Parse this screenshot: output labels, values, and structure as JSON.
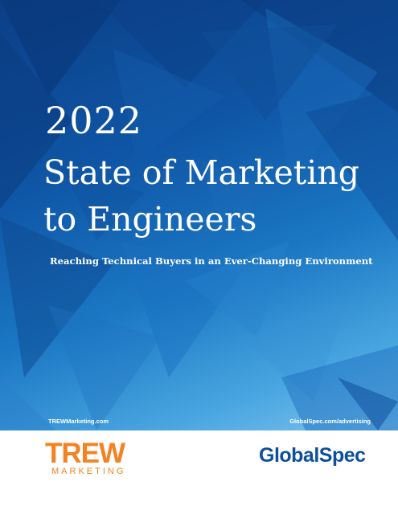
{
  "cover": {
    "year": "2022",
    "title_line1": "State of Marketing",
    "title_line2": "to Engineers",
    "subtitle": "Reaching Technical Buyers in an Ever-Changing Environment",
    "url_left": "TREWMarketing.com",
    "url_right": "GlobalSpec.com/advertising"
  },
  "footer": {
    "trew_logo_word": "TREW",
    "trew_logo_sub": "MARKETING",
    "globalspec_logo": "GlobalSpec"
  },
  "colors": {
    "cover_dark_blue": "#0b3f86",
    "cover_light_blue": "#7cc3ee",
    "trew_orange": "#f58220",
    "globalspec_blue": "#0d4f9c",
    "text_white": "#ffffff"
  }
}
